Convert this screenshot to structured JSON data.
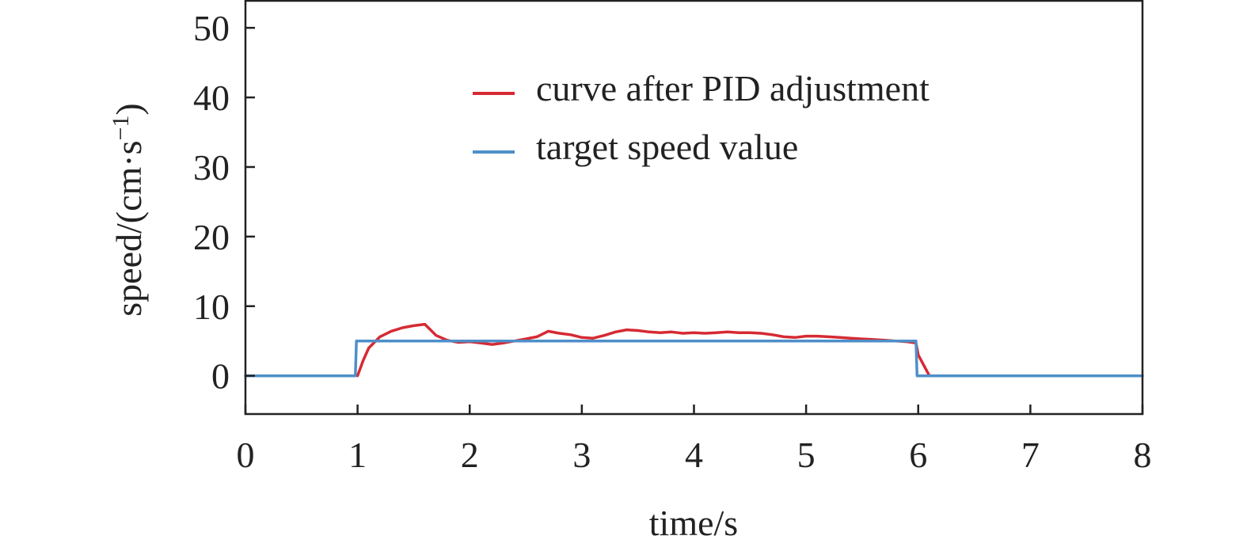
{
  "chart_data": {
    "type": "line",
    "title": "",
    "xlabel": "time/s",
    "ylabel": "speed/(cm·s",
    "ylabel_sup": "−1",
    "ylabel_close": ")",
    "xlim": [
      0,
      8
    ],
    "ylim": [
      -5.5,
      54
    ],
    "xticks": [
      0,
      1,
      2,
      3,
      4,
      5,
      6,
      7,
      8
    ],
    "yticks": [
      0,
      10,
      20,
      30,
      40,
      50
    ],
    "grid": false,
    "legend_position": "top-center",
    "series": [
      {
        "name": "curve after PID adjustment",
        "color": "#d62a33",
        "x": [
          1.0,
          1.05,
          1.1,
          1.2,
          1.3,
          1.4,
          1.5,
          1.6,
          1.65,
          1.7,
          1.8,
          1.9,
          2.0,
          2.1,
          2.2,
          2.3,
          2.4,
          2.5,
          2.6,
          2.7,
          2.8,
          2.9,
          3.0,
          3.1,
          3.2,
          3.3,
          3.4,
          3.5,
          3.6,
          3.7,
          3.8,
          3.9,
          4.0,
          4.1,
          4.2,
          4.3,
          4.4,
          4.5,
          4.6,
          4.7,
          4.8,
          4.9,
          5.0,
          5.1,
          5.2,
          5.3,
          5.4,
          5.5,
          5.6,
          5.7,
          5.8,
          5.9,
          5.98,
          6.0,
          6.05,
          6.1
        ],
        "y": [
          0.0,
          2.2,
          4.0,
          5.6,
          6.4,
          6.9,
          7.2,
          7.4,
          6.6,
          5.8,
          5.1,
          4.8,
          4.9,
          4.7,
          4.5,
          4.7,
          5.0,
          5.3,
          5.6,
          6.4,
          6.1,
          5.9,
          5.5,
          5.4,
          5.8,
          6.3,
          6.6,
          6.5,
          6.3,
          6.2,
          6.3,
          6.1,
          6.2,
          6.1,
          6.2,
          6.3,
          6.2,
          6.2,
          6.1,
          5.9,
          5.6,
          5.5,
          5.7,
          5.7,
          5.6,
          5.5,
          5.4,
          5.3,
          5.2,
          5.1,
          5.0,
          4.9,
          4.7,
          3.0,
          1.5,
          0.0
        ]
      },
      {
        "name": "target speed value",
        "color": "#4f8fc9",
        "x": [
          0.0,
          0.98,
          0.99,
          5.98,
          5.99,
          8.0
        ],
        "y": [
          0,
          0,
          5,
          5,
          0,
          0
        ]
      }
    ]
  }
}
